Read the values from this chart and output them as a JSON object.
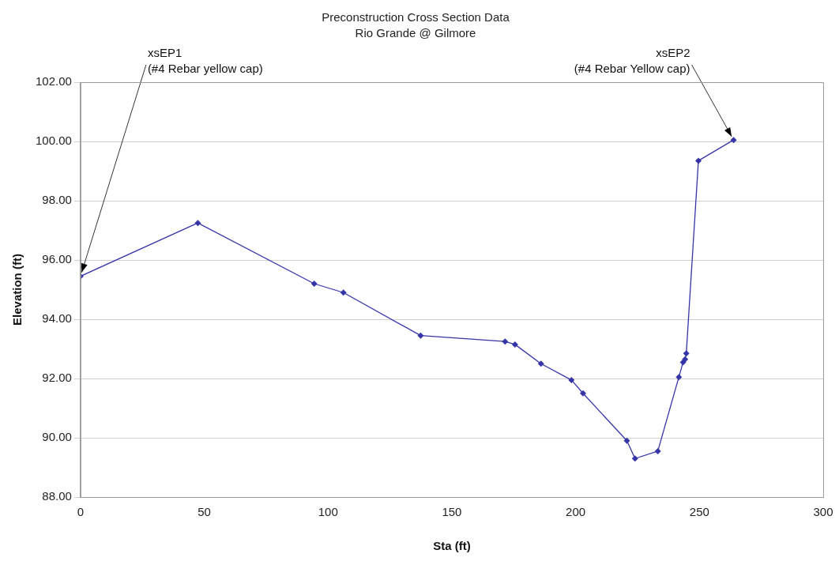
{
  "chart_data": {
    "type": "line",
    "title": "Preconstruction Cross Section Data",
    "subtitle": "Rio Grande @ Gilmore",
    "xlabel": "Sta (ft)",
    "ylabel": "Elevation (ft)",
    "x": [
      0,
      47.4,
      94.4,
      106.2,
      137.4,
      171.5,
      175.5,
      186,
      198.3,
      203,
      220.7,
      224,
      233.2,
      241.7,
      243.4,
      244.2,
      244.7,
      249.6,
      263.8
    ],
    "series": [
      {
        "color": "#3535a8",
        "values": [
          95.45,
          97.25,
          95.2,
          94.9,
          93.45,
          93.25,
          93.15,
          92.5,
          91.95,
          91.5,
          89.9,
          89.3,
          89.55,
          92.05,
          92.55,
          92.65,
          92.85,
          99.35,
          100.05
        ]
      }
    ],
    "xlim": [
      0,
      300
    ],
    "xticks": [
      0,
      50,
      100,
      150,
      200,
      250,
      300
    ],
    "ylim": [
      88,
      102
    ],
    "yticks": [
      {
        "value": 88,
        "label": "88.00"
      },
      {
        "value": 90,
        "label": "90.00"
      },
      {
        "value": 92,
        "label": "92.00"
      },
      {
        "value": 94,
        "label": "94.00"
      },
      {
        "value": 96,
        "label": "96.00"
      },
      {
        "value": 98,
        "label": "98.00"
      },
      {
        "value": 100,
        "label": "100.00"
      },
      {
        "value": 102,
        "label": "102.00"
      }
    ],
    "grid": "y",
    "legend": false,
    "marker": "diamond",
    "line_style": "solid",
    "annotations": [
      {
        "text": "xsEP1\n(#4 Rebar yellow cap)",
        "x": 0,
        "y": 95.45
      },
      {
        "text": "xsEP2\n(#4 Rebar Yellow cap)",
        "x": 263.8,
        "y": 100.05
      }
    ]
  }
}
